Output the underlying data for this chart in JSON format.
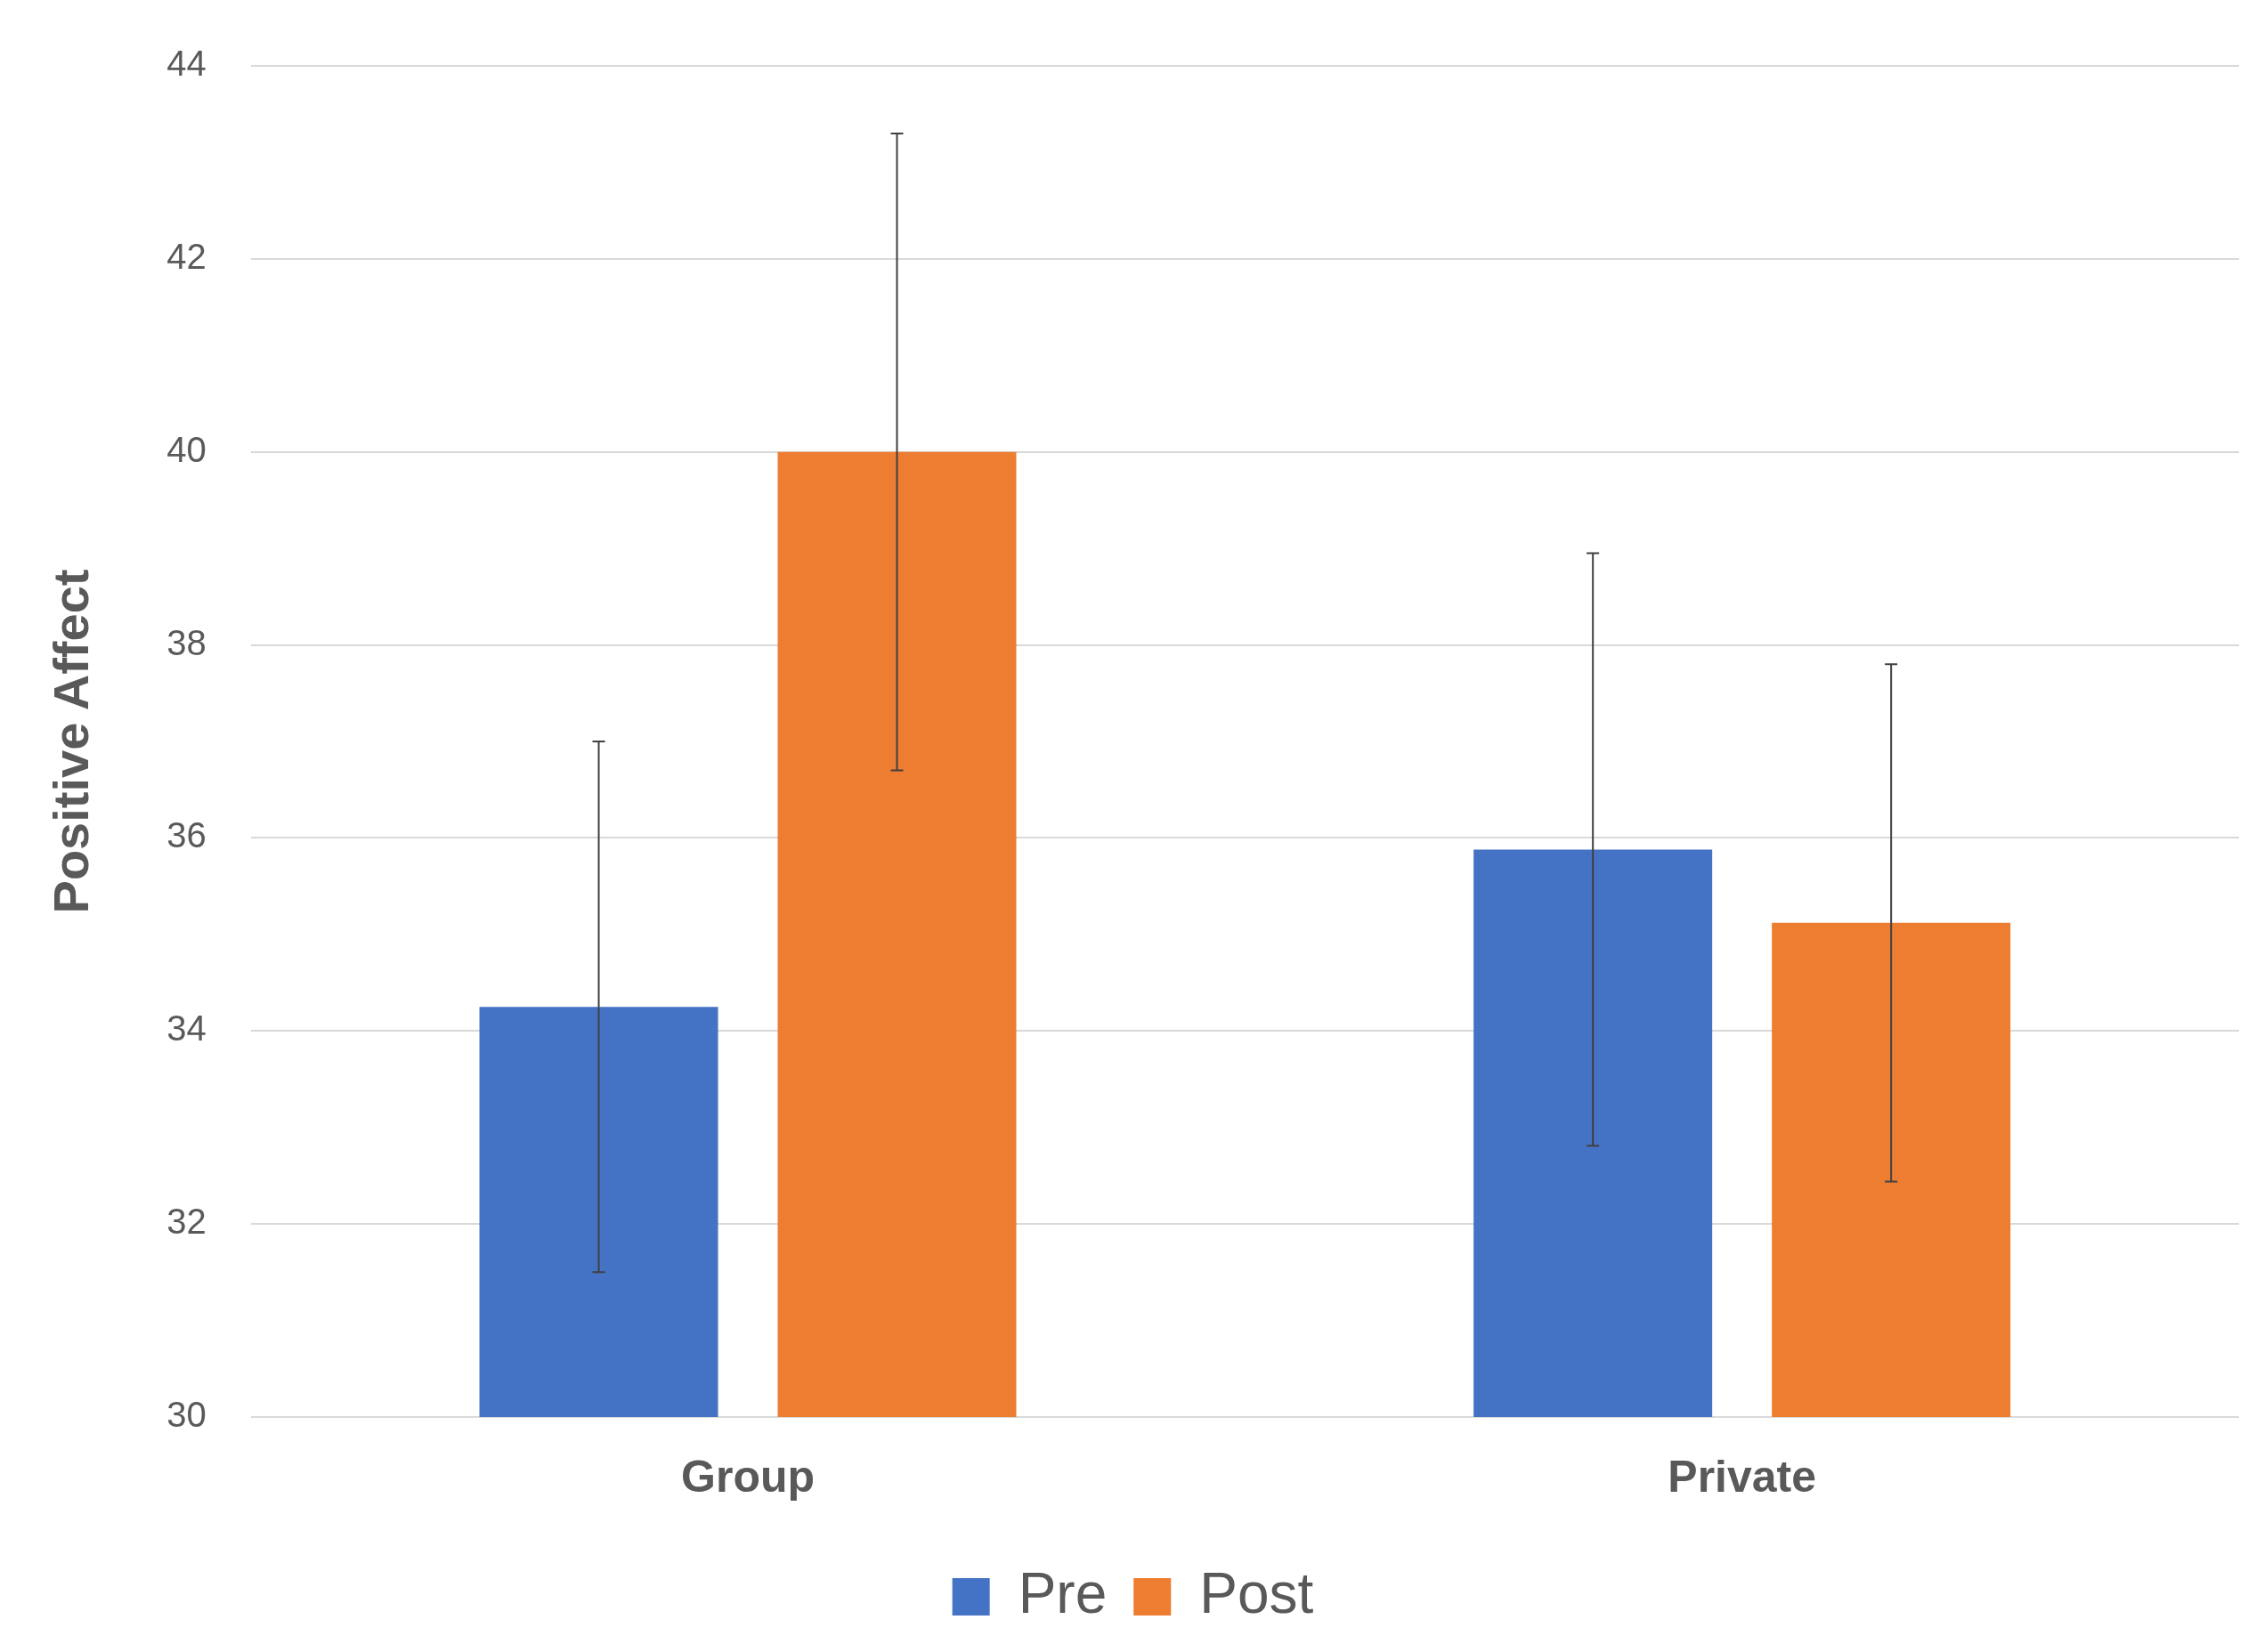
{
  "chart_data": {
    "type": "bar",
    "ylabel": "Positive Affect",
    "categories": [
      "Group",
      "Private"
    ],
    "series": [
      {
        "name": "Pre",
        "color": "#4472c4",
        "values": [
          34.25,
          35.88
        ],
        "errors": [
          2.75,
          3.07
        ]
      },
      {
        "name": "Post",
        "color": "#ed7d31",
        "values": [
          40.0,
          35.12
        ],
        "errors": [
          3.3,
          2.68
        ]
      }
    ],
    "ylim": [
      30,
      44
    ],
    "yticks": [
      30,
      32,
      34,
      36,
      38,
      40,
      42,
      44
    ],
    "grid": "y",
    "legend": "bottom"
  }
}
